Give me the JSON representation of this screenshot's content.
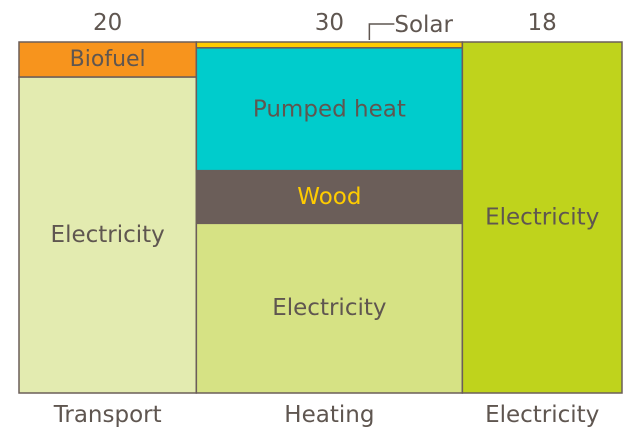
{
  "chart_data": {
    "type": "marimekko",
    "title": "",
    "xlabel": "",
    "ylabel": "",
    "colors": {
      "biofuel": "#f7941d",
      "solar": "#ffcc00",
      "pumped_heat": "#00cccc",
      "wood": "#6b5e59",
      "transport_electricity": "#e3ebb0",
      "heating_electricity": "#d6e284",
      "electricity_electricity": "#bfd31c",
      "border": "#6b5e59",
      "text": "#5f5650",
      "wood_text": "#ffcc00"
    },
    "columns": [
      {
        "name": "Transport",
        "total": 20,
        "total_label": "20",
        "segments": [
          {
            "name": "Biofuel",
            "value": 2,
            "color_key": "biofuel"
          },
          {
            "name": "Electricity",
            "value": 18,
            "color_key": "transport_electricity"
          }
        ]
      },
      {
        "name": "Heating",
        "total": 30,
        "total_label": "30",
        "segments": [
          {
            "name": "Solar",
            "value": 0.5,
            "color_key": "solar",
            "callout": true
          },
          {
            "name": "Pumped heat",
            "value": 10.5,
            "color_key": "pumped_heat"
          },
          {
            "name": "Wood",
            "value": 4.5,
            "color_key": "wood",
            "text_color_key": "wood_text"
          },
          {
            "name": "Electricity",
            "value": 14.5,
            "color_key": "heating_electricity"
          }
        ]
      },
      {
        "name": "Electricity",
        "total": 18,
        "total_label": "18",
        "segments": [
          {
            "name": "Electricity",
            "value": 18,
            "color_key": "electricity_electricity"
          }
        ]
      }
    ]
  }
}
